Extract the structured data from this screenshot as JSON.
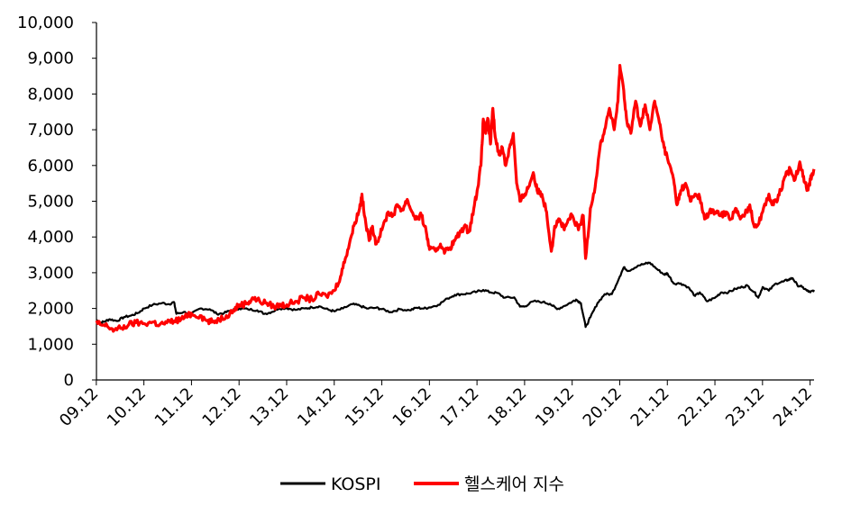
{
  "chart_data": {
    "type": "line",
    "title": "",
    "xlabel": "",
    "ylabel": "",
    "ylim": [
      0,
      10000
    ],
    "y_ticks": [
      "0",
      "1,000",
      "2,000",
      "3,000",
      "4,000",
      "5,000",
      "6,000",
      "7,000",
      "8,000",
      "9,000",
      "10,000"
    ],
    "x_range": [
      2009.92,
      2025.0
    ],
    "x_ticks": [
      {
        "x": 2009.917,
        "label": "09.12"
      },
      {
        "x": 2010.917,
        "label": "10.12"
      },
      {
        "x": 2011.917,
        "label": "11.12"
      },
      {
        "x": 2012.917,
        "label": "12.12"
      },
      {
        "x": 2013.917,
        "label": "13.12"
      },
      {
        "x": 2014.917,
        "label": "14.12"
      },
      {
        "x": 2015.917,
        "label": "15.12"
      },
      {
        "x": 2016.917,
        "label": "16.12"
      },
      {
        "x": 2017.917,
        "label": "17.12"
      },
      {
        "x": 2018.917,
        "label": "18.12"
      },
      {
        "x": 2019.917,
        "label": "19.12"
      },
      {
        "x": 2020.917,
        "label": "20.12"
      },
      {
        "x": 2021.917,
        "label": "21.12"
      },
      {
        "x": 2022.917,
        "label": "22.12"
      },
      {
        "x": 2023.917,
        "label": "23.12"
      },
      {
        "x": 2024.917,
        "label": "24.12"
      }
    ],
    "grid": false,
    "legend_position": "bottom",
    "series": [
      {
        "name": "KOSPI",
        "color": "#000000",
        "points": [
          [
            2009.92,
            1680
          ],
          [
            2010.0,
            1600
          ],
          [
            2010.1,
            1640
          ],
          [
            2010.2,
            1700
          ],
          [
            2010.35,
            1650
          ],
          [
            2010.5,
            1760
          ],
          [
            2010.65,
            1800
          ],
          [
            2010.8,
            1880
          ],
          [
            2010.92,
            2000
          ],
          [
            2011.1,
            2100
          ],
          [
            2011.3,
            2150
          ],
          [
            2011.45,
            2120
          ],
          [
            2011.55,
            2180
          ],
          [
            2011.6,
            1850
          ],
          [
            2011.75,
            1900
          ],
          [
            2011.92,
            1850
          ],
          [
            2012.1,
            2000
          ],
          [
            2012.3,
            1980
          ],
          [
            2012.45,
            1850
          ],
          [
            2012.6,
            1870
          ],
          [
            2012.75,
            1950
          ],
          [
            2012.92,
            2000
          ],
          [
            2013.1,
            1980
          ],
          [
            2013.3,
            1950
          ],
          [
            2013.45,
            1850
          ],
          [
            2013.6,
            1900
          ],
          [
            2013.75,
            2000
          ],
          [
            2013.92,
            2010
          ],
          [
            2014.1,
            1960
          ],
          [
            2014.3,
            2000
          ],
          [
            2014.45,
            2030
          ],
          [
            2014.6,
            2060
          ],
          [
            2014.8,
            1960
          ],
          [
            2014.92,
            1920
          ],
          [
            2015.1,
            2000
          ],
          [
            2015.3,
            2120
          ],
          [
            2015.45,
            2080
          ],
          [
            2015.6,
            2000
          ],
          [
            2015.8,
            2020
          ],
          [
            2015.92,
            1980
          ],
          [
            2016.1,
            1900
          ],
          [
            2016.3,
            1980
          ],
          [
            2016.5,
            1950
          ],
          [
            2016.65,
            2020
          ],
          [
            2016.8,
            2000
          ],
          [
            2016.92,
            2030
          ],
          [
            2017.1,
            2100
          ],
          [
            2017.3,
            2280
          ],
          [
            2017.45,
            2380
          ],
          [
            2017.6,
            2400
          ],
          [
            2017.75,
            2420
          ],
          [
            2017.92,
            2470
          ],
          [
            2018.05,
            2520
          ],
          [
            2018.2,
            2450
          ],
          [
            2018.35,
            2430
          ],
          [
            2018.5,
            2300
          ],
          [
            2018.7,
            2310
          ],
          [
            2018.82,
            2050
          ],
          [
            2018.92,
            2060
          ],
          [
            2019.1,
            2200
          ],
          [
            2019.3,
            2180
          ],
          [
            2019.45,
            2130
          ],
          [
            2019.6,
            1980
          ],
          [
            2019.75,
            2070
          ],
          [
            2019.92,
            2190
          ],
          [
            2020.0,
            2250
          ],
          [
            2020.1,
            2150
          ],
          [
            2020.2,
            1480
          ],
          [
            2020.3,
            1750
          ],
          [
            2020.45,
            2150
          ],
          [
            2020.6,
            2400
          ],
          [
            2020.75,
            2400
          ],
          [
            2020.92,
            2900
          ],
          [
            2021.0,
            3150
          ],
          [
            2021.1,
            3050
          ],
          [
            2021.3,
            3200
          ],
          [
            2021.45,
            3250
          ],
          [
            2021.55,
            3280
          ],
          [
            2021.7,
            3100
          ],
          [
            2021.85,
            2950
          ],
          [
            2021.92,
            2980
          ],
          [
            2022.05,
            2700
          ],
          [
            2022.2,
            2700
          ],
          [
            2022.35,
            2600
          ],
          [
            2022.5,
            2350
          ],
          [
            2022.6,
            2450
          ],
          [
            2022.75,
            2200
          ],
          [
            2022.92,
            2300
          ],
          [
            2023.05,
            2450
          ],
          [
            2023.2,
            2450
          ],
          [
            2023.35,
            2550
          ],
          [
            2023.5,
            2600
          ],
          [
            2023.6,
            2640
          ],
          [
            2023.75,
            2450
          ],
          [
            2023.83,
            2300
          ],
          [
            2023.92,
            2600
          ],
          [
            2024.05,
            2500
          ],
          [
            2024.2,
            2700
          ],
          [
            2024.35,
            2750
          ],
          [
            2024.45,
            2800
          ],
          [
            2024.55,
            2850
          ],
          [
            2024.65,
            2650
          ],
          [
            2024.75,
            2600
          ],
          [
            2024.85,
            2500
          ],
          [
            2024.92,
            2450
          ],
          [
            2025.0,
            2520
          ]
        ]
      },
      {
        "name": "헬스케어 지수",
        "color": "#ff0000",
        "points": [
          [
            2009.92,
            1600
          ],
          [
            2010.0,
            1550
          ],
          [
            2010.15,
            1500
          ],
          [
            2010.3,
            1400
          ],
          [
            2010.45,
            1450
          ],
          [
            2010.6,
            1550
          ],
          [
            2010.75,
            1600
          ],
          [
            2010.92,
            1580
          ],
          [
            2011.1,
            1620
          ],
          [
            2011.25,
            1550
          ],
          [
            2011.4,
            1600
          ],
          [
            2011.55,
            1650
          ],
          [
            2011.7,
            1700
          ],
          [
            2011.85,
            1800
          ],
          [
            2011.92,
            1850
          ],
          [
            2012.1,
            1800
          ],
          [
            2012.25,
            1650
          ],
          [
            2012.35,
            1620
          ],
          [
            2012.5,
            1700
          ],
          [
            2012.65,
            1800
          ],
          [
            2012.8,
            1950
          ],
          [
            2012.92,
            2100
          ],
          [
            2013.1,
            2150
          ],
          [
            2013.2,
            2300
          ],
          [
            2013.35,
            2200
          ],
          [
            2013.5,
            2150
          ],
          [
            2013.65,
            2050
          ],
          [
            2013.8,
            2100
          ],
          [
            2013.92,
            2100
          ],
          [
            2014.1,
            2200
          ],
          [
            2014.3,
            2300
          ],
          [
            2014.45,
            2250
          ],
          [
            2014.6,
            2400
          ],
          [
            2014.75,
            2350
          ],
          [
            2014.92,
            2500
          ],
          [
            2015.05,
            2900
          ],
          [
            2015.15,
            3400
          ],
          [
            2015.25,
            3900
          ],
          [
            2015.35,
            4400
          ],
          [
            2015.45,
            4800
          ],
          [
            2015.5,
            5200
          ],
          [
            2015.55,
            4600
          ],
          [
            2015.65,
            3900
          ],
          [
            2015.72,
            4300
          ],
          [
            2015.8,
            3800
          ],
          [
            2015.92,
            4200
          ],
          [
            2016.05,
            4700
          ],
          [
            2016.15,
            4600
          ],
          [
            2016.25,
            4900
          ],
          [
            2016.35,
            4750
          ],
          [
            2016.45,
            5050
          ],
          [
            2016.55,
            4700
          ],
          [
            2016.65,
            4500
          ],
          [
            2016.75,
            4600
          ],
          [
            2016.85,
            4150
          ],
          [
            2016.92,
            3650
          ],
          [
            2017.05,
            3600
          ],
          [
            2017.15,
            3800
          ],
          [
            2017.25,
            3600
          ],
          [
            2017.35,
            3700
          ],
          [
            2017.45,
            3900
          ],
          [
            2017.55,
            4100
          ],
          [
            2017.65,
            4300
          ],
          [
            2017.75,
            4150
          ],
          [
            2017.85,
            4800
          ],
          [
            2017.92,
            5300
          ],
          [
            2018.0,
            6000
          ],
          [
            2018.05,
            7300
          ],
          [
            2018.1,
            6900
          ],
          [
            2018.15,
            7300
          ],
          [
            2018.2,
            6600
          ],
          [
            2018.25,
            7600
          ],
          [
            2018.3,
            6800
          ],
          [
            2018.38,
            6300
          ],
          [
            2018.45,
            6500
          ],
          [
            2018.52,
            6000
          ],
          [
            2018.6,
            6500
          ],
          [
            2018.68,
            6900
          ],
          [
            2018.75,
            5500
          ],
          [
            2018.82,
            5000
          ],
          [
            2018.92,
            5200
          ],
          [
            2019.0,
            5400
          ],
          [
            2019.1,
            5800
          ],
          [
            2019.18,
            5300
          ],
          [
            2019.28,
            5200
          ],
          [
            2019.38,
            4700
          ],
          [
            2019.48,
            3600
          ],
          [
            2019.55,
            4300
          ],
          [
            2019.65,
            4500
          ],
          [
            2019.75,
            4200
          ],
          [
            2019.85,
            4500
          ],
          [
            2019.92,
            4600
          ],
          [
            2020.05,
            4200
          ],
          [
            2020.15,
            4600
          ],
          [
            2020.2,
            3400
          ],
          [
            2020.3,
            4800
          ],
          [
            2020.4,
            5400
          ],
          [
            2020.5,
            6500
          ],
          [
            2020.6,
            7000
          ],
          [
            2020.7,
            7600
          ],
          [
            2020.8,
            7000
          ],
          [
            2020.88,
            7800
          ],
          [
            2020.92,
            8800
          ],
          [
            2021.0,
            8100
          ],
          [
            2021.07,
            7200
          ],
          [
            2021.15,
            6900
          ],
          [
            2021.25,
            7800
          ],
          [
            2021.35,
            7100
          ],
          [
            2021.45,
            7700
          ],
          [
            2021.55,
            7000
          ],
          [
            2021.65,
            7800
          ],
          [
            2021.75,
            7200
          ],
          [
            2021.85,
            6500
          ],
          [
            2021.92,
            6200
          ],
          [
            2022.05,
            5600
          ],
          [
            2022.12,
            4900
          ],
          [
            2022.2,
            5300
          ],
          [
            2022.3,
            5500
          ],
          [
            2022.4,
            5000
          ],
          [
            2022.5,
            5200
          ],
          [
            2022.6,
            5100
          ],
          [
            2022.7,
            4500
          ],
          [
            2022.8,
            4700
          ],
          [
            2022.92,
            4700
          ],
          [
            2023.05,
            4600
          ],
          [
            2023.15,
            4700
          ],
          [
            2023.25,
            4500
          ],
          [
            2023.35,
            4800
          ],
          [
            2023.45,
            4500
          ],
          [
            2023.55,
            4650
          ],
          [
            2023.65,
            4900
          ],
          [
            2023.72,
            4400
          ],
          [
            2023.8,
            4300
          ],
          [
            2023.92,
            4700
          ],
          [
            2024.05,
            5200
          ],
          [
            2024.12,
            4900
          ],
          [
            2024.2,
            5000
          ],
          [
            2024.3,
            5300
          ],
          [
            2024.4,
            5700
          ],
          [
            2024.5,
            5900
          ],
          [
            2024.6,
            5600
          ],
          [
            2024.7,
            6100
          ],
          [
            2024.78,
            5700
          ],
          [
            2024.85,
            5300
          ],
          [
            2024.9,
            5500
          ],
          [
            2024.95,
            5700
          ],
          [
            2025.0,
            5900
          ]
        ]
      }
    ]
  }
}
